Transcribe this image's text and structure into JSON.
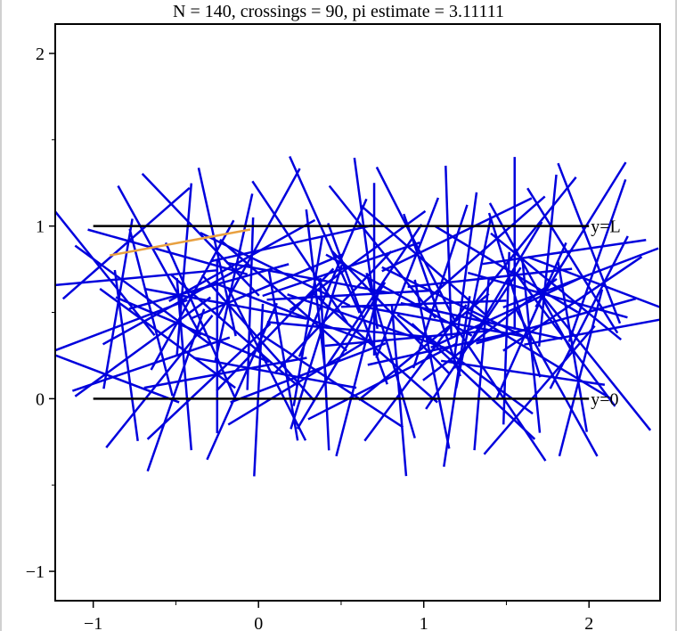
{
  "chart_data": {
    "type": "line",
    "title": "N = 140, crossings = 90, pi estimate = 3.11111",
    "xlim": [
      -1.23,
      2.43
    ],
    "ylim": [
      -1.17,
      2.17
    ],
    "xticks": [
      -1,
      0,
      1,
      2
    ],
    "yticks": [
      -1,
      0,
      1,
      2
    ],
    "xtick_labels": [
      "−1",
      "0",
      "1",
      "2"
    ],
    "ytick_labels": [
      "−1",
      "0",
      "1",
      "2"
    ],
    "grid": false,
    "needle_length": 1,
    "needle_color": "#0000dd",
    "highlight_color": "#e8a040",
    "line_color": "#000000",
    "reference_lines": [
      {
        "label": "y=L",
        "y": 1,
        "x": [
          -1,
          2
        ]
      },
      {
        "label": "y=0",
        "y": 0,
        "x": [
          -1,
          2
        ]
      }
    ],
    "highlight_needle": [
      -0.9,
      0.83,
      -0.05,
      0.98
    ],
    "needles_center_angle_deg": [
      [
        -0.85,
        0.55,
        80
      ],
      [
        -0.7,
        0.3,
        35
      ],
      [
        -0.6,
        0.8,
        120
      ],
      [
        -0.45,
        0.2,
        95
      ],
      [
        -0.3,
        0.65,
        15
      ],
      [
        -0.15,
        0.4,
        140
      ],
      [
        0.0,
        0.9,
        60
      ],
      [
        0.15,
        0.25,
        100
      ],
      [
        0.3,
        0.7,
        170
      ],
      [
        0.45,
        0.5,
        45
      ],
      [
        0.6,
        0.15,
        75
      ],
      [
        0.75,
        0.85,
        130
      ],
      [
        0.9,
        0.35,
        5
      ],
      [
        1.05,
        0.6,
        110
      ],
      [
        1.2,
        0.95,
        25
      ],
      [
        1.35,
        0.2,
        85
      ],
      [
        1.5,
        0.75,
        150
      ],
      [
        1.65,
        0.45,
        65
      ],
      [
        1.8,
        0.1,
        120
      ],
      [
        1.95,
        0.7,
        20
      ],
      [
        -0.95,
        0.15,
        160
      ],
      [
        -0.8,
        0.9,
        40
      ],
      [
        -0.65,
        0.5,
        105
      ],
      [
        -0.5,
        0.05,
        70
      ],
      [
        -0.35,
        0.95,
        135
      ],
      [
        -0.2,
        0.15,
        10
      ],
      [
        -0.05,
        0.55,
        88
      ],
      [
        0.1,
        0.75,
        155
      ],
      [
        0.25,
        0.1,
        30
      ],
      [
        0.4,
        0.95,
        115
      ],
      [
        0.55,
        0.4,
        175
      ],
      [
        0.7,
        0.6,
        55
      ],
      [
        0.85,
        0.05,
        95
      ],
      [
        1.0,
        0.8,
        140
      ],
      [
        1.15,
        0.3,
        12
      ],
      [
        1.3,
        0.55,
        78
      ],
      [
        1.45,
        0.05,
        125
      ],
      [
        1.6,
        0.9,
        50
      ],
      [
        1.75,
        0.6,
        165
      ],
      [
        1.9,
        0.3,
        100
      ],
      [
        -0.75,
        0.7,
        5
      ],
      [
        -0.55,
        0.35,
        145
      ],
      [
        -0.4,
        0.6,
        60
      ],
      [
        -0.25,
        0.3,
        90
      ],
      [
        -0.1,
        0.8,
        28
      ],
      [
        0.05,
        0.2,
        118
      ],
      [
        0.2,
        0.5,
        160
      ],
      [
        0.35,
        0.3,
        72
      ],
      [
        0.5,
        0.75,
        18
      ],
      [
        0.65,
        0.9,
        98
      ],
      [
        0.8,
        0.5,
        135
      ],
      [
        0.95,
        0.15,
        52
      ],
      [
        1.1,
        0.45,
        170
      ],
      [
        1.25,
        0.7,
        82
      ],
      [
        1.4,
        0.4,
        36
      ],
      [
        1.55,
        0.6,
        108
      ],
      [
        1.7,
        0.25,
        150
      ],
      [
        1.85,
        0.85,
        8
      ],
      [
        2.0,
        0.5,
        62
      ],
      [
        2.05,
        0.2,
        130
      ],
      [
        -0.9,
        0.4,
        20
      ],
      [
        -0.6,
        0.1,
        50
      ],
      [
        -0.45,
        0.75,
        85
      ],
      [
        -0.2,
        0.55,
        170
      ],
      [
        0.1,
        0.4,
        45
      ],
      [
        0.25,
        0.85,
        125
      ],
      [
        0.4,
        0.2,
        93
      ],
      [
        0.55,
        0.6,
        3
      ],
      [
        0.7,
        0.3,
        140
      ],
      [
        0.9,
        0.7,
        68
      ],
      [
        1.05,
        0.2,
        102
      ],
      [
        1.2,
        0.55,
        155
      ],
      [
        1.35,
        0.85,
        40
      ],
      [
        1.5,
        0.35,
        88
      ],
      [
        1.65,
        0.7,
        120
      ],
      [
        1.8,
        0.45,
        15
      ],
      [
        1.95,
        0.15,
        75
      ],
      [
        2.1,
        0.65,
        160
      ],
      [
        -0.7,
        0.6,
        145
      ],
      [
        -0.35,
        0.45,
        115
      ],
      [
        -0.1,
        0.1,
        65
      ],
      [
        0.05,
        0.65,
        22
      ],
      [
        0.3,
        0.45,
        80
      ],
      [
        0.45,
        0.1,
        148
      ],
      [
        0.6,
        0.8,
        35
      ],
      [
        0.8,
        0.25,
        107
      ],
      [
        1.0,
        0.55,
        2
      ],
      [
        1.15,
        0.85,
        92
      ],
      [
        1.3,
        0.1,
        138
      ],
      [
        1.45,
        0.6,
        58
      ],
      [
        1.6,
        0.15,
        172
      ],
      [
        1.75,
        0.8,
        84
      ],
      [
        1.9,
        0.55,
        33
      ],
      [
        2.0,
        0.9,
        112
      ],
      [
        -0.8,
        0.25,
        98
      ],
      [
        -0.55,
        0.85,
        165
      ],
      [
        -0.3,
        0.1,
        42
      ],
      [
        -0.15,
        0.7,
        77
      ],
      [
        0.0,
        0.35,
        133
      ],
      [
        0.2,
        0.9,
        12
      ],
      [
        0.35,
        0.6,
        97
      ],
      [
        0.5,
        0.25,
        58
      ],
      [
        0.65,
        0.45,
        162
      ],
      [
        0.75,
        0.1,
        26
      ],
      [
        0.95,
        0.9,
        118
      ],
      [
        1.1,
        0.65,
        71
      ],
      [
        1.25,
        0.2,
        145
      ],
      [
        1.4,
        0.7,
        6
      ],
      [
        1.55,
        0.9,
        90
      ],
      [
        1.7,
        0.05,
        48
      ],
      [
        1.85,
        0.35,
        128
      ],
      [
        2.05,
        0.8,
        70
      ],
      [
        -0.95,
        0.75,
        130
      ],
      [
        -0.65,
        0.2,
        18
      ],
      [
        -0.4,
        0.4,
        158
      ],
      [
        -0.25,
        0.85,
        103
      ],
      [
        0.0,
        0.05,
        87
      ],
      [
        0.15,
        0.6,
        140
      ],
      [
        0.3,
        0.15,
        20
      ],
      [
        0.45,
        0.7,
        66
      ],
      [
        0.6,
        0.55,
        111
      ],
      [
        0.85,
        0.6,
        152
      ],
      [
        1.0,
        0.3,
        38
      ],
      [
        1.2,
        0.1,
        81
      ],
      [
        1.35,
        0.45,
        168
      ],
      [
        1.5,
        0.5,
        24
      ],
      [
        1.65,
        0.3,
        96
      ],
      [
        1.8,
        0.65,
        142
      ],
      [
        1.95,
        0.95,
        57
      ],
      [
        2.1,
        0.4,
        10
      ],
      [
        -0.5,
        0.55,
        28
      ],
      [
        0.1,
        0.15,
        170
      ],
      [
        0.7,
        0.75,
        90
      ],
      [
        1.3,
        0.35,
        55
      ],
      [
        1.9,
        0.8,
        123
      ]
    ]
  }
}
